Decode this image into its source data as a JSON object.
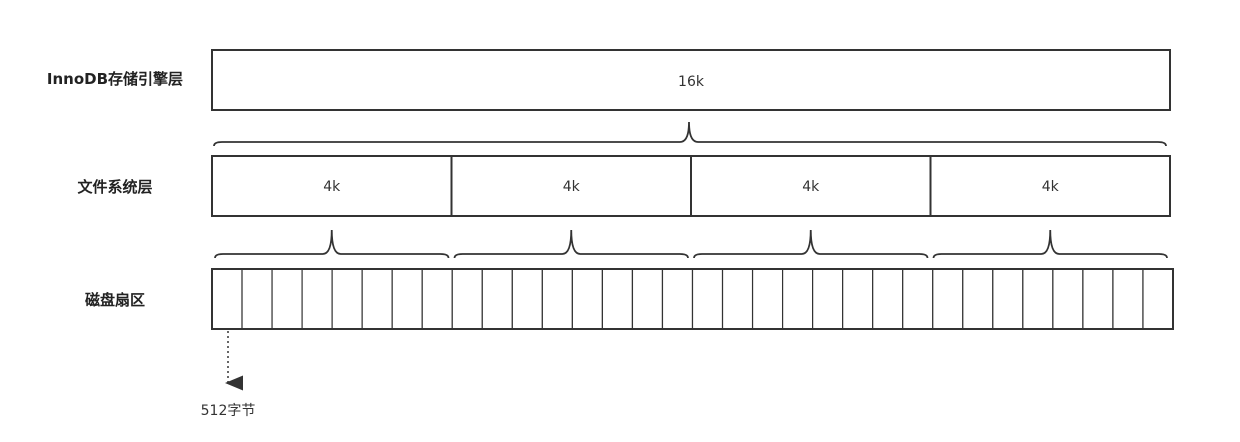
{
  "layers": {
    "innodb": {
      "label": "InnoDB存储引擎层",
      "page_size": "16k"
    },
    "filesystem": {
      "label": "文件系统层",
      "blocks": [
        "4k",
        "4k",
        "4k",
        "4k"
      ]
    },
    "disk": {
      "label": "磁盘扇区",
      "sector_count": 32,
      "sector_note": "512字节"
    }
  },
  "colors": {
    "stroke": "#333333",
    "background": "#ffffff"
  }
}
